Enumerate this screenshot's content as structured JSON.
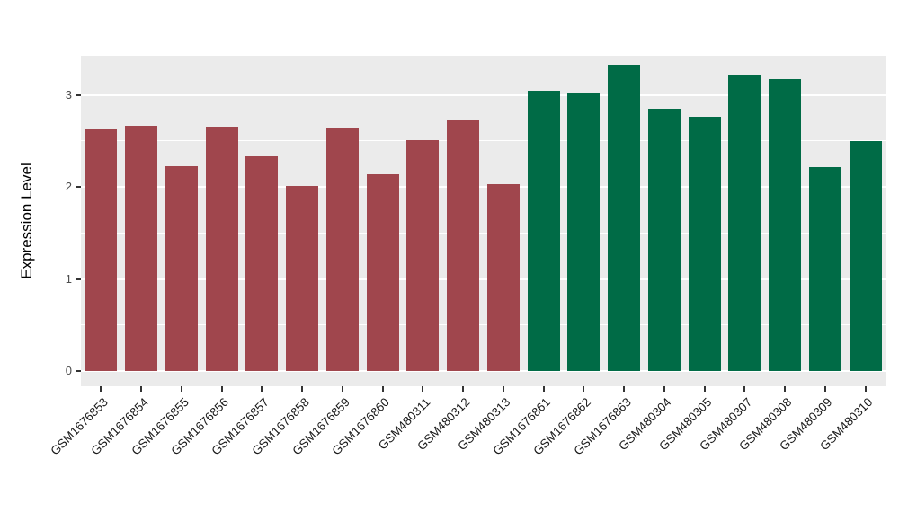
{
  "chart_data": {
    "type": "bar",
    "title": "",
    "xlabel": "",
    "ylabel": "Expression Level",
    "ylim": [
      0,
      3.45
    ],
    "yticks": [
      0,
      1,
      2,
      3
    ],
    "yticks_minor": [
      0.5,
      1.5,
      2.5
    ],
    "grid": true,
    "legend_position": "none",
    "panel_background": "#EBEBEB",
    "grid_color": "#FFFFFF",
    "categories": [
      "GSM1676853",
      "GSM1676854",
      "GSM1676855",
      "GSM1676856",
      "GSM1676857",
      "GSM1676858",
      "GSM1676859",
      "GSM1676860",
      "GSM480311",
      "GSM480312",
      "GSM480313",
      "GSM1676861",
      "GSM1676862",
      "GSM1676863",
      "GSM480304",
      "GSM480305",
      "GSM480307",
      "GSM480308",
      "GSM480309",
      "GSM480310"
    ],
    "values": [
      2.62,
      2.66,
      2.22,
      2.65,
      2.33,
      2.01,
      2.64,
      2.14,
      2.51,
      2.72,
      2.03,
      3.04,
      3.01,
      3.33,
      2.85,
      2.76,
      3.21,
      3.17,
      2.21,
      2.5
    ],
    "groups": [
      "group1",
      "group1",
      "group1",
      "group1",
      "group1",
      "group1",
      "group1",
      "group1",
      "group1",
      "group1",
      "group1",
      "group2",
      "group2",
      "group2",
      "group2",
      "group2",
      "group2",
      "group2",
      "group2",
      "group2"
    ],
    "group_colors": {
      "group1": "#A0464D",
      "group2": "#006B46"
    }
  }
}
